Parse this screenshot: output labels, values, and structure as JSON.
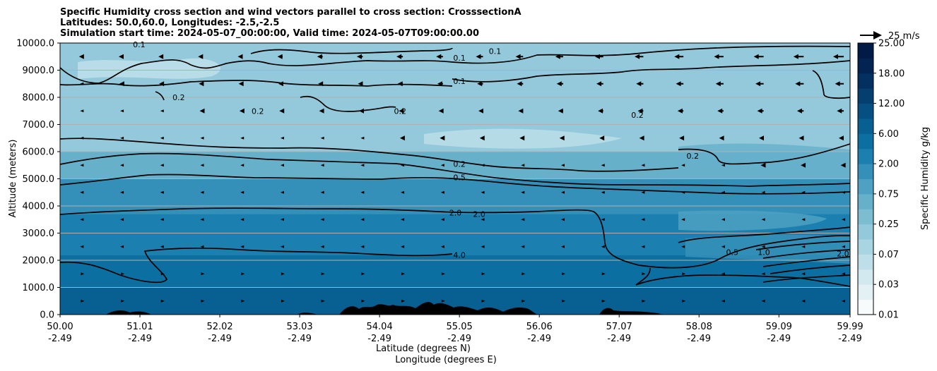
{
  "chart_data": {
    "type": "contourf",
    "title_lines": [
      "Specific Humidity cross section and wind vectors parallel to cross section: CrosssectionA",
      "Latitudes: 50.0,60.0, Longitudes: -2.5,-2.5",
      "Simulation start time: 2024-05-07_00:00:00, Valid time: 2024-05-07T09:00:00.00"
    ],
    "ylabel": "Altitude (meters)",
    "xlabel_lat": "Latitude (degrees N)",
    "xlabel_lon": "Longitude (degrees E)",
    "ylim": [
      0,
      10000
    ],
    "y_ticks": [
      "0.0",
      "1000.0",
      "2000.0",
      "3000.0",
      "4000.0",
      "5000.0",
      "6000.0",
      "7000.0",
      "8000.0",
      "9000.0",
      "10000.0"
    ],
    "y_tick_values": [
      0,
      1000,
      2000,
      3000,
      4000,
      5000,
      6000,
      7000,
      8000,
      9000,
      10000
    ],
    "xlim": [
      50.0,
      59.99
    ],
    "x_tick_values": [
      50.0,
      51.01,
      52.02,
      53.03,
      54.04,
      55.05,
      56.06,
      57.07,
      58.08,
      59.09,
      59.99
    ],
    "x_ticks_lat": [
      "50.00",
      "51.01",
      "52.02",
      "53.03",
      "54.04",
      "55.05",
      "56.06",
      "57.07",
      "58.08",
      "59.09",
      "59.99"
    ],
    "x_ticks_lon": [
      "-2.49",
      "-2.49",
      "-2.49",
      "-2.49",
      "-2.49",
      "-2.49",
      "-2.49",
      "-2.49",
      "-2.49",
      "-2.49",
      "-2.49"
    ],
    "colorbar": {
      "label": "Specific Humidity g/kg",
      "levels": [
        0.01,
        0.02,
        0.03,
        0.05,
        0.07,
        0.1,
        0.25,
        0.5,
        0.75,
        1.0,
        2.0,
        4.0,
        6.0,
        9.0,
        12.0,
        15.0,
        18.0,
        21.0,
        25.0
      ],
      "tick_labels": [
        "0.01",
        "0.03",
        "0.07",
        "0.25",
        "0.75",
        "2.00",
        "6.00",
        "12.00",
        "18.00",
        "25.00"
      ],
      "tick_values": [
        0.01,
        0.03,
        0.07,
        0.25,
        0.75,
        2.0,
        6.0,
        12.0,
        18.0,
        25.0
      ],
      "colors": [
        "#f7fbfc",
        "#e4f1f4",
        "#d2e9ef",
        "#bedfe9",
        "#a9d5e2",
        "#93c9db",
        "#7cbdd2",
        "#66b0ca",
        "#4ea1c2",
        "#3590b9",
        "#1b7fb0",
        "#0b6fa2",
        "#075f92",
        "#054f82",
        "#043f70",
        "#033060",
        "#032452",
        "#021a46"
      ]
    },
    "humidity_bands": [
      {
        "lower_m": 8200,
        "upper_m": 10000,
        "value_gkg": 0.1
      },
      {
        "lower_m": 6000,
        "upper_m": 8200,
        "value_gkg": 0.2
      },
      {
        "lower_m": 5000,
        "upper_m": 6000,
        "value_gkg": 0.5
      },
      {
        "lower_m": 3700,
        "upper_m": 5000,
        "value_gkg": 1.0
      },
      {
        "lower_m": 2200,
        "upper_m": 3700,
        "value_gkg": 2.0
      },
      {
        "lower_m": 1000,
        "upper_m": 2200,
        "value_gkg": 4.0
      },
      {
        "lower_m": 0,
        "upper_m": 1000,
        "value_gkg": 6.0
      }
    ],
    "contour_labels": [
      {
        "text": "0.1",
        "lat": 55.05,
        "alt_m": 9450
      },
      {
        "text": "0.1",
        "lat": 55.5,
        "alt_m": 9700
      },
      {
        "text": "0.1",
        "lat": 55.05,
        "alt_m": 8600
      },
      {
        "text": "0.1",
        "lat": 51.0,
        "alt_m": 9950
      },
      {
        "text": "0.2",
        "lat": 51.5,
        "alt_m": 8000
      },
      {
        "text": "0.2",
        "lat": 52.5,
        "alt_m": 7500
      },
      {
        "text": "0.2",
        "lat": 54.3,
        "alt_m": 7500
      },
      {
        "text": "0.2",
        "lat": 57.3,
        "alt_m": 7350
      },
      {
        "text": "0.2",
        "lat": 55.05,
        "alt_m": 5550
      },
      {
        "text": "0.2",
        "lat": 58.0,
        "alt_m": 5850
      },
      {
        "text": "0.5",
        "lat": 55.05,
        "alt_m": 5050
      },
      {
        "text": "2.0",
        "lat": 55.0,
        "alt_m": 3750
      },
      {
        "text": "2.0",
        "lat": 55.3,
        "alt_m": 3700
      },
      {
        "text": "4.0",
        "lat": 55.05,
        "alt_m": 2200
      },
      {
        "text": "0.5",
        "lat": 58.5,
        "alt_m": 2300
      },
      {
        "text": "1.0",
        "lat": 58.9,
        "alt_m": 2300
      },
      {
        "text": "2.0",
        "lat": 59.9,
        "alt_m": 2250
      }
    ],
    "wind_reference": {
      "label": "25 m/s",
      "speed_ms": 25
    },
    "wind_vectors": {
      "direction": "southward (negative)",
      "upper_max_ms": -13,
      "lower_max_ms": 3
    }
  }
}
